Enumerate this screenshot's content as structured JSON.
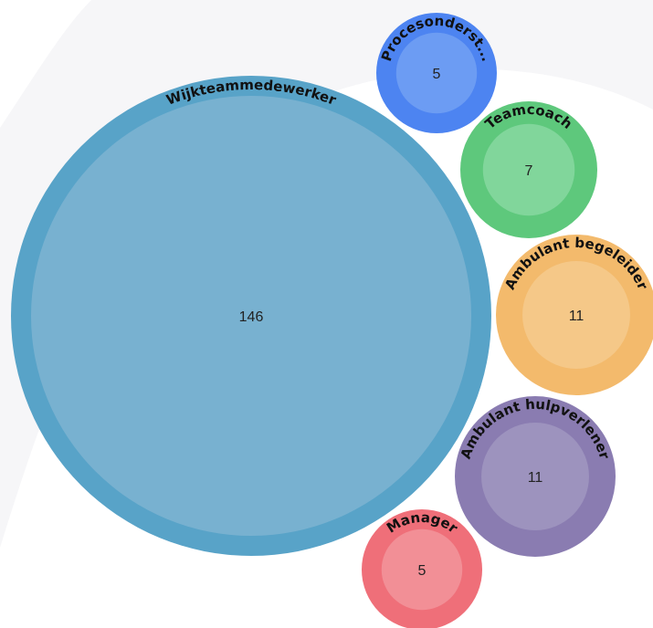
{
  "chart_data": {
    "type": "bubble",
    "legend": "none",
    "grid": false,
    "colors": {
      "background_arc": "#f6f6f8"
    },
    "items": [
      {
        "label": "Wijkteammedewerker",
        "value": 146,
        "color": "#58a3c8",
        "inner_color": "#78b1d0"
      },
      {
        "label": "Procesonderst...",
        "value": 5,
        "color": "#4d84f1",
        "inner_color": "#6c9cf3"
      },
      {
        "label": "Teamcoach",
        "value": 7,
        "color": "#5ec87c",
        "inner_color": "#81d69b"
      },
      {
        "label": "Ambulant begeleider",
        "value": 11,
        "color": "#f3ba6c",
        "inner_color": "#f5c888"
      },
      {
        "label": "Ambulant hulpverlener",
        "value": 11,
        "color": "#8a7cb1",
        "inner_color": "#9d93be"
      },
      {
        "label": "Manager",
        "value": 5,
        "color": "#ef6f79",
        "inner_color": "#f28f96"
      }
    ]
  }
}
